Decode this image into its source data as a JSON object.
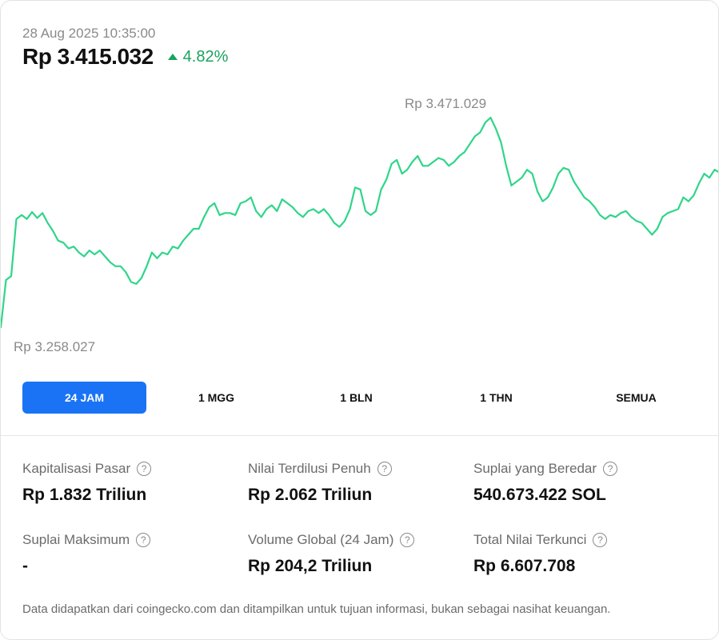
{
  "header": {
    "timestamp": "28 Aug 2025 10:35:00",
    "price": "Rp 3.415.032",
    "change": "4.82%",
    "change_color": "#1aa35f"
  },
  "chart_data": {
    "type": "line",
    "high_label": "Rp 3.471.029",
    "low_label": "Rp 3.258.027",
    "high": 3471029,
    "low": 3258027,
    "color": "#2fd58a",
    "grid": false,
    "values": [
      3258027,
      3306000,
      3310000,
      3368000,
      3372000,
      3368000,
      3375000,
      3369000,
      3374000,
      3364000,
      3356000,
      3346000,
      3344000,
      3338000,
      3340000,
      3334000,
      3330000,
      3336000,
      3332000,
      3336000,
      3330000,
      3324000,
      3320000,
      3320000,
      3314000,
      3304000,
      3302000,
      3308000,
      3320000,
      3334000,
      3328000,
      3334000,
      3332000,
      3340000,
      3338000,
      3346000,
      3352000,
      3358000,
      3358000,
      3370000,
      3380000,
      3384000,
      3372000,
      3374000,
      3374000,
      3372000,
      3384000,
      3386000,
      3390000,
      3376000,
      3370000,
      3378000,
      3382000,
      3376000,
      3388000,
      3384000,
      3380000,
      3374000,
      3370000,
      3376000,
      3378000,
      3374000,
      3378000,
      3372000,
      3364000,
      3360000,
      3366000,
      3378000,
      3400000,
      3398000,
      3376000,
      3372000,
      3376000,
      3398000,
      3408000,
      3424000,
      3428000,
      3414000,
      3418000,
      3426000,
      3432000,
      3422000,
      3422000,
      3426000,
      3430000,
      3428000,
      3422000,
      3426000,
      3432000,
      3436000,
      3444000,
      3452000,
      3456000,
      3466000,
      3471029,
      3460000,
      3446000,
      3422000,
      3402000,
      3406000,
      3410000,
      3418000,
      3414000,
      3396000,
      3386000,
      3390000,
      3400000,
      3414000,
      3420000,
      3418000,
      3406000,
      3398000,
      3390000,
      3386000,
      3380000,
      3372000,
      3368000,
      3372000,
      3370000,
      3374000,
      3376000,
      3370000,
      3366000,
      3364000,
      3358000,
      3352000,
      3358000,
      3370000,
      3374000,
      3376000,
      3378000,
      3390000,
      3386000,
      3392000,
      3404000,
      3414000,
      3410000,
      3418000,
      3415032
    ]
  },
  "tabs": [
    "24 JAM",
    "1 MGG",
    "1 BLN",
    "1 THN",
    "SEMUA"
  ],
  "accent_color": "#1a73f5",
  "stats": [
    {
      "label": "Kapitalisasi Pasar",
      "value": "Rp 1.832 Triliun"
    },
    {
      "label": "Nilai Terdilusi Penuh",
      "value": "Rp 2.062 Triliun"
    },
    {
      "label": "Suplai yang Beredar",
      "value": "540.673.422 SOL"
    },
    {
      "label": "Suplai Maksimum",
      "value": "-"
    },
    {
      "label": "Volume Global (24 Jam)",
      "value": "Rp 204,2 Triliun"
    },
    {
      "label": "Total Nilai Terkunci",
      "value": "Rp 6.607.708"
    }
  ],
  "help_icon": "question-circle-icon",
  "help_glyph": "?",
  "footnote": "Data didapatkan dari coingecko.com dan ditampilkan untuk tujuan informasi, bukan sebagai nasihat keuangan."
}
